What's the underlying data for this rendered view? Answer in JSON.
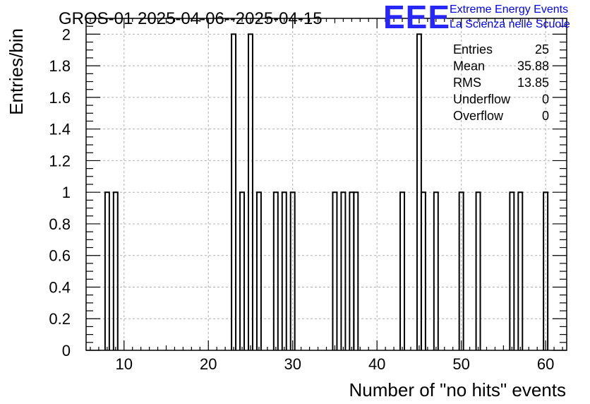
{
  "chart_data": {
    "type": "bar",
    "histogram": true,
    "title": "GROS-01 2025-04-06--2025-04-15",
    "xlabel": "Number of \"no hits\" events",
    "ylabel": "Entries/bin",
    "xlim": [
      5.5,
      62.5
    ],
    "ylim": [
      0,
      2.1
    ],
    "bin_width": 0.5,
    "x_ticks": [
      10,
      20,
      30,
      40,
      50,
      60
    ],
    "y_ticks": [
      0,
      0.2,
      0.4,
      0.6,
      0.8,
      1,
      1.2,
      1.4,
      1.6,
      1.8,
      2
    ],
    "y_tick_labels": [
      "0",
      "0.2",
      "0.4",
      "0.6",
      "0.8",
      "1",
      "1.2",
      "1.4",
      "1.6",
      "1.8",
      "2"
    ],
    "grid": true,
    "bins": [
      {
        "x0": 7.75,
        "x1": 8.25,
        "value": 1
      },
      {
        "x0": 8.75,
        "x1": 9.25,
        "value": 1
      },
      {
        "x0": 22.75,
        "x1": 23.25,
        "value": 2
      },
      {
        "x0": 23.75,
        "x1": 24.25,
        "value": 1
      },
      {
        "x0": 24.75,
        "x1": 25.25,
        "value": 2
      },
      {
        "x0": 25.75,
        "x1": 26.25,
        "value": 1
      },
      {
        "x0": 27.75,
        "x1": 28.25,
        "value": 1
      },
      {
        "x0": 28.75,
        "x1": 29.25,
        "value": 1
      },
      {
        "x0": 29.75,
        "x1": 30.25,
        "value": 1
      },
      {
        "x0": 34.75,
        "x1": 35.25,
        "value": 1
      },
      {
        "x0": 35.75,
        "x1": 36.25,
        "value": 1
      },
      {
        "x0": 36.75,
        "x1": 37.25,
        "value": 1
      },
      {
        "x0": 37.25,
        "x1": 37.75,
        "value": 1
      },
      {
        "x0": 42.75,
        "x1": 43.25,
        "value": 1
      },
      {
        "x0": 44.75,
        "x1": 45.25,
        "value": 2
      },
      {
        "x0": 45.25,
        "x1": 45.75,
        "value": 1
      },
      {
        "x0": 46.75,
        "x1": 47.25,
        "value": 1
      },
      {
        "x0": 49.75,
        "x1": 50.25,
        "value": 1
      },
      {
        "x0": 51.75,
        "x1": 52.25,
        "value": 1
      },
      {
        "x0": 55.75,
        "x1": 56.25,
        "value": 1
      },
      {
        "x0": 56.75,
        "x1": 57.25,
        "value": 1
      },
      {
        "x0": 59.75,
        "x1": 60.25,
        "value": 1
      }
    ],
    "stats": [
      {
        "label": "Entries",
        "value": "25"
      },
      {
        "label": "Mean",
        "value": "35.88"
      },
      {
        "label": "RMS",
        "value": "13.85"
      },
      {
        "label": "Underflow",
        "value": "0"
      },
      {
        "label": "Overflow",
        "value": "0"
      }
    ]
  },
  "logo": {
    "mark": "EEE",
    "line1": "Extreme Energy Events",
    "line2": "La Scienza nelle Scuole",
    "color": "#0000ff"
  }
}
